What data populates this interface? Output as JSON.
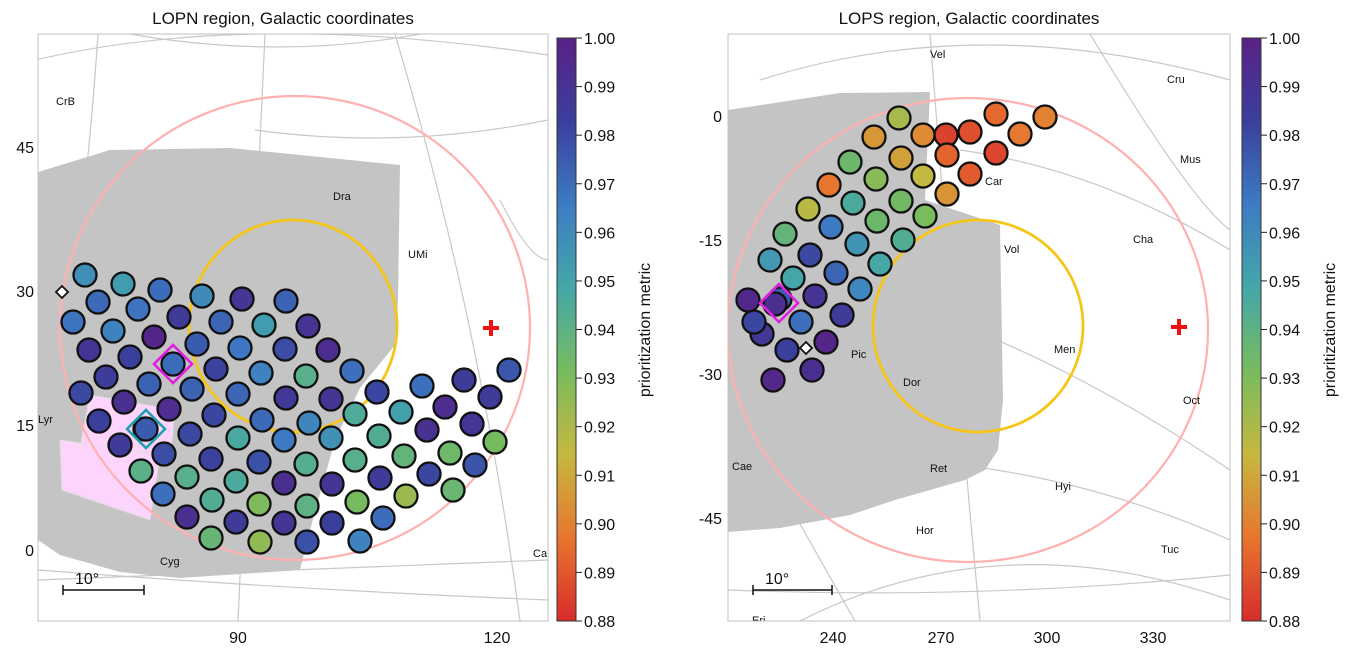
{
  "colors": {
    "footprint": "#c4c4c4",
    "region_circle": "#ffb0b0",
    "cvz_circle": "#f5c518",
    "pole_marker": "#ee1111",
    "highlight_magenta": "#e020e0",
    "highlight_cyan": "#20a0b0",
    "survey_patch": "#fcd4fc",
    "grid": "#c8c8c8"
  },
  "colormap": {
    "name": "rainbow-reversed",
    "stops": [
      "#d62c2c",
      "#e8762e",
      "#c6b840",
      "#78bb5e",
      "#44a7a8",
      "#3d7bc4",
      "#3a3f9c",
      "#5a2186"
    ]
  },
  "chart_data": [
    {
      "type": "scatter",
      "title": "LOPN region, Galactic coordinates",
      "xticks": [
        "90",
        "120"
      ],
      "yticks": [
        "0",
        "15",
        "30",
        "45"
      ],
      "scale_bar": "10°",
      "constellations": [
        "CrB",
        "Dra",
        "UMi",
        "Lyr",
        "Cyg",
        "Ca"
      ],
      "colorbar": {
        "label": "prioritization metric",
        "range": [
          0.88,
          1.0
        ],
        "ticks": [
          "0.88",
          "0.89",
          "0.90",
          "0.91",
          "0.92",
          "0.93",
          "0.94",
          "0.95",
          "0.96",
          "0.97",
          "0.98",
          "0.99",
          "1.00"
        ]
      }
    },
    {
      "type": "scatter",
      "title": "LOPS region, Galactic coordinates",
      "xticks": [
        "240",
        "270",
        "300",
        "330"
      ],
      "yticks": [
        "-45",
        "-30",
        "-15",
        "0"
      ],
      "scale_bar": "10°",
      "constellations": [
        "Vel",
        "Cru",
        "Mus",
        "Car",
        "Cha",
        "Vol",
        "Men",
        "Pic",
        "Dor",
        "Oct",
        "Cae",
        "Ret",
        "Hyi",
        "Hor",
        "Tuc",
        "Eri"
      ],
      "colorbar": {
        "label": "prioritization metric",
        "range": [
          0.88,
          1.0
        ],
        "ticks": [
          "0.88",
          "0.89",
          "0.90",
          "0.91",
          "0.92",
          "0.93",
          "0.94",
          "0.95",
          "0.96",
          "0.97",
          "0.98",
          "0.99",
          "1.00"
        ]
      }
    }
  ],
  "fields_left": [
    [
      0.958,
      0.953,
      0.97,
      0.96,
      0.988,
      0.973,
      0.971,
      0.968,
      0.986,
      0.972,
      0.953,
      0.99,
      0.968,
      0.963,
      0.997,
      0.975,
      0.967,
      0.979,
      0.993,
      0.969,
      0.989,
      0.983,
      0.97,
      0.982,
      0.963,
      0.942,
      0.981,
      0.984,
      0.973,
      0.973,
      0.972,
      0.987,
      0.988,
      0.969,
      0.985,
      0.976,
      0.98,
      0.992,
      0.993,
      0.981,
      0.971,
      0.962,
      0.945,
      0.951,
      0.993,
      0.985,
      0.983,
      0.985,
      0.98,
      0.947,
      0.966,
      0.957,
      0.944,
      0.991,
      0.989,
      0.986,
      0.979,
      0.982,
      0.978,
      0.943,
      0.942,
      0.938,
      0.934,
      0.932,
      0.941,
      0.942,
      0.946,
      0.992,
      0.988,
      0.986,
      0.981,
      0.977,
      0.969,
      0.944,
      0.93,
      0.94,
      0.932,
      0.924,
      0.936,
      0.992,
      0.985,
      0.988,
      0.983,
      0.97,
      0.937,
      0.926,
      0.978,
      0.963,
      0.975,
      0.936
    ]
  ],
  "fields_right": [
    [
      0.9,
      0.898,
      0.894,
      0.888,
      0.885,
      0.886,
      0.921,
      0.906,
      0.902,
      0.893,
      0.891,
      0.935,
      0.928,
      0.915,
      0.905,
      0.908,
      0.897,
      0.946,
      0.935,
      0.933,
      0.931,
      0.917,
      0.966,
      0.956,
      0.948,
      0.944,
      0.938,
      0.98,
      0.972,
      0.961,
      0.954,
      0.949,
      0.99,
      0.985,
      0.975,
      0.969,
      0.998,
      0.987,
      0.983,
      0.992,
      0.996,
      0.981,
      0.996,
      0.992
    ]
  ]
}
